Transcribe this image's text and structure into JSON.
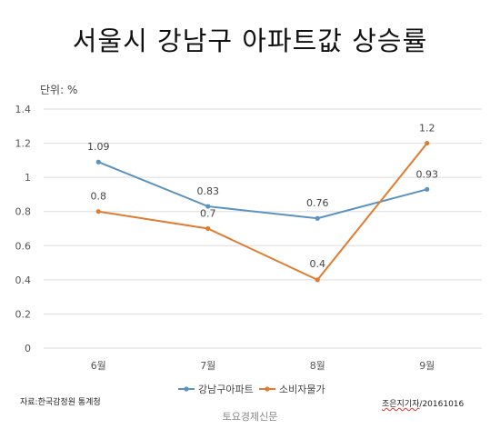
{
  "title": "서울시 강남구 아파트값 상승률",
  "unit_label": "단위: %",
  "source": "자료:한국감정원 통계청",
  "credit_name": "조은지기자",
  "credit_date": "/20161016",
  "publisher": "토요경제신문",
  "colors": {
    "apartment": "#5b93c0",
    "cpi": "#e07b30",
    "grid": "#dddddd",
    "axis_text": "#555555"
  },
  "chart_data": {
    "type": "line",
    "categories": [
      "6월",
      "7월",
      "8월",
      "9월"
    ],
    "series": [
      {
        "name": "강남구아파트",
        "values": [
          1.09,
          0.83,
          0.76,
          0.93
        ],
        "labels": [
          "1.09",
          "0.83",
          "0.76",
          "0.93"
        ]
      },
      {
        "name": "소비자물가",
        "values": [
          0.8,
          0.7,
          0.4,
          1.2
        ],
        "labels": [
          "0.8",
          "0.7",
          "0.4",
          "1.2"
        ]
      }
    ],
    "yticks": [
      "0",
      "0.2",
      "0.4",
      "0.6",
      "0.8",
      "1",
      "1.2",
      "1.4"
    ],
    "ylim": [
      0,
      1.4
    ],
    "grid": true,
    "legend": "bottom"
  }
}
